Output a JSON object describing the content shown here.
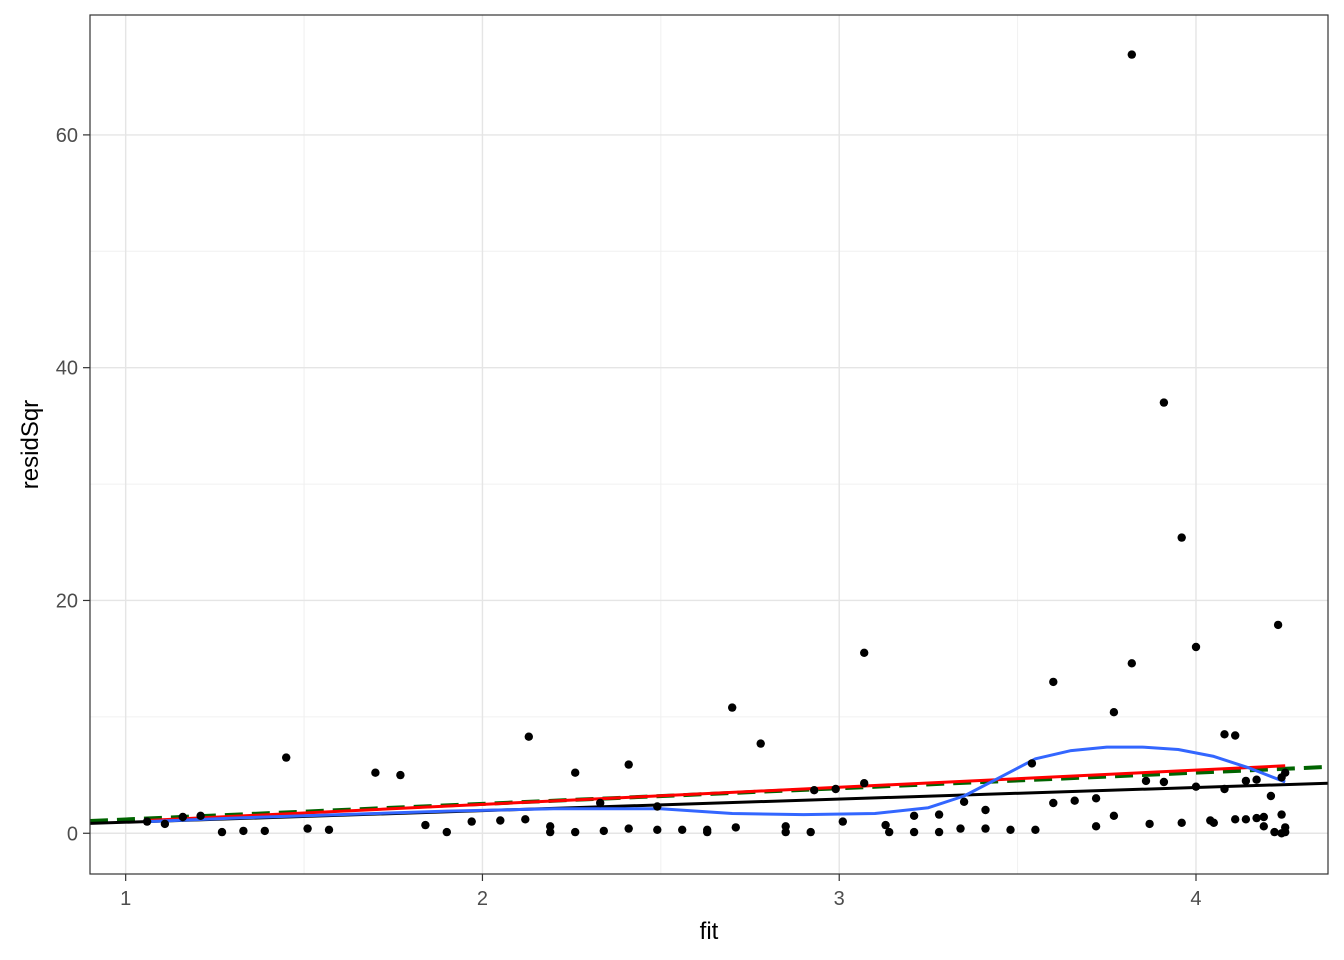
{
  "chart_data": {
    "type": "scatter",
    "xlabel": "fit",
    "ylabel": "residSqr",
    "xlim": [
      0.9,
      4.37
    ],
    "ylim": [
      -3.5,
      70.3
    ],
    "x_ticks": [
      1,
      2,
      3,
      4
    ],
    "x_tick_labels": [
      "1",
      "2",
      "3",
      "4"
    ],
    "y_ticks": [
      0,
      20,
      40,
      60
    ],
    "y_tick_labels": [
      "0",
      "20",
      "40",
      "60"
    ],
    "x_minor_grid": [
      1.5,
      2.5,
      3.5
    ],
    "y_minor_grid": [
      10,
      30,
      50
    ],
    "grid": true,
    "theme": "bw",
    "point_color": "#000000",
    "points": [
      [
        1.06,
        1.0
      ],
      [
        1.11,
        0.8
      ],
      [
        1.16,
        1.4
      ],
      [
        1.21,
        1.5
      ],
      [
        1.27,
        0.1
      ],
      [
        1.33,
        0.2
      ],
      [
        1.39,
        0.2
      ],
      [
        1.45,
        6.5
      ],
      [
        1.51,
        0.4
      ],
      [
        1.57,
        0.3
      ],
      [
        1.7,
        5.2
      ],
      [
        1.77,
        5.0
      ],
      [
        1.84,
        0.7
      ],
      [
        1.9,
        0.1
      ],
      [
        1.97,
        1.0
      ],
      [
        2.05,
        1.1
      ],
      [
        2.12,
        1.2
      ],
      [
        2.13,
        8.3
      ],
      [
        2.19,
        0.1
      ],
      [
        2.19,
        0.6
      ],
      [
        2.26,
        5.2
      ],
      [
        2.26,
        0.1
      ],
      [
        2.33,
        2.6
      ],
      [
        2.34,
        0.2
      ],
      [
        2.41,
        5.9
      ],
      [
        2.41,
        0.4
      ],
      [
        2.49,
        0.3
      ],
      [
        2.49,
        2.3
      ],
      [
        2.56,
        0.3
      ],
      [
        2.63,
        0.3
      ],
      [
        2.63,
        0.1
      ],
      [
        2.7,
        10.8
      ],
      [
        2.71,
        0.5
      ],
      [
        2.78,
        7.7
      ],
      [
        2.85,
        0.1
      ],
      [
        2.85,
        0.6
      ],
      [
        2.92,
        0.1
      ],
      [
        2.93,
        3.7
      ],
      [
        2.99,
        3.8
      ],
      [
        3.01,
        1.0
      ],
      [
        3.07,
        15.5
      ],
      [
        3.07,
        4.3
      ],
      [
        3.13,
        0.7
      ],
      [
        3.14,
        0.1
      ],
      [
        3.21,
        1.5
      ],
      [
        3.21,
        0.1
      ],
      [
        3.28,
        0.1
      ],
      [
        3.28,
        1.6
      ],
      [
        3.34,
        0.4
      ],
      [
        3.35,
        2.7
      ],
      [
        3.41,
        2.0
      ],
      [
        3.41,
        0.4
      ],
      [
        3.48,
        0.3
      ],
      [
        3.54,
        6.0
      ],
      [
        3.55,
        0.3
      ],
      [
        3.6,
        13.0
      ],
      [
        3.6,
        2.6
      ],
      [
        3.66,
        2.8
      ],
      [
        3.72,
        3.0
      ],
      [
        3.72,
        0.6
      ],
      [
        3.77,
        1.5
      ],
      [
        3.77,
        10.4
      ],
      [
        3.82,
        14.6
      ],
      [
        3.82,
        66.9
      ],
      [
        3.86,
        4.5
      ],
      [
        3.87,
        0.8
      ],
      [
        3.91,
        37.0
      ],
      [
        3.91,
        4.4
      ],
      [
        3.96,
        25.4
      ],
      [
        3.96,
        0.9
      ],
      [
        4.0,
        16.0
      ],
      [
        4.0,
        4.0
      ],
      [
        4.04,
        1.1
      ],
      [
        4.05,
        0.9
      ],
      [
        4.08,
        8.5
      ],
      [
        4.08,
        3.8
      ],
      [
        4.11,
        8.4
      ],
      [
        4.11,
        1.2
      ],
      [
        4.14,
        1.2
      ],
      [
        4.14,
        4.5
      ],
      [
        4.17,
        1.3
      ],
      [
        4.17,
        4.6
      ],
      [
        4.19,
        1.4
      ],
      [
        4.19,
        0.6
      ],
      [
        4.21,
        3.2
      ],
      [
        4.22,
        0.1
      ],
      [
        4.23,
        17.9
      ],
      [
        4.24,
        0.0
      ],
      [
        4.24,
        1.6
      ],
      [
        4.24,
        4.8
      ],
      [
        4.25,
        0.5
      ],
      [
        4.25,
        0.1
      ],
      [
        4.25,
        5.2
      ]
    ],
    "lines": [
      {
        "color": "#006400",
        "dash": "dashed",
        "width": 4,
        "x": [
          0.9,
          4.37
        ],
        "y": [
          1.05,
          5.7
        ]
      },
      {
        "color": "#000000",
        "dash": "solid",
        "width": 3,
        "x": [
          0.9,
          4.37
        ],
        "y": [
          0.85,
          4.3
        ]
      },
      {
        "color": "#ff0000",
        "dash": "solid",
        "width": 3,
        "x": [
          1.06,
          4.25
        ],
        "y": [
          1.1,
          5.8
        ]
      },
      {
        "color": "#3366ff",
        "dash": "solid",
        "width": 3,
        "x": [
          1.06,
          1.3,
          1.6,
          1.9,
          2.2,
          2.5,
          2.7,
          2.9,
          3.1,
          3.25,
          3.35,
          3.45,
          3.55,
          3.65,
          3.75,
          3.85,
          3.95,
          4.05,
          4.15,
          4.25
        ],
        "y": [
          1.0,
          1.3,
          1.6,
          1.9,
          2.1,
          2.1,
          1.7,
          1.6,
          1.7,
          2.2,
          3.2,
          4.8,
          6.4,
          7.1,
          7.4,
          7.4,
          7.2,
          6.6,
          5.6,
          4.4
        ]
      }
    ]
  }
}
